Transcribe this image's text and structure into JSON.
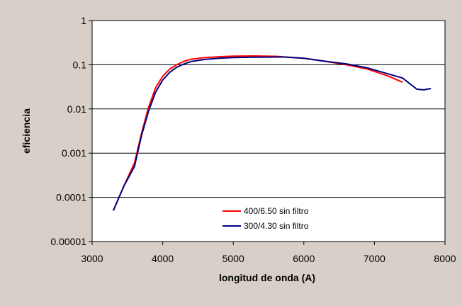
{
  "chart_data": {
    "type": "line",
    "xlabel": "longitud de onda (A)",
    "ylabel": "eficiencia",
    "title": "",
    "xlim": [
      3000,
      8000
    ],
    "ylim": [
      1e-05,
      1
    ],
    "yscale": "log",
    "grid": "horizontal major lines",
    "legend_position": "bottom-center",
    "x_ticks": [
      "3000",
      "4000",
      "5000",
      "6000",
      "7000",
      "8000"
    ],
    "y_ticks": [
      "0.00001",
      "0.0001",
      "0.001",
      "0.01",
      "0.1",
      "1"
    ],
    "series": [
      {
        "name": "400/6.50 sin filtro",
        "color": "#ff0000",
        "points": [
          [
            3300,
            5e-05
          ],
          [
            3450,
            0.00018
          ],
          [
            3600,
            0.0006
          ],
          [
            3700,
            0.0028
          ],
          [
            3800,
            0.011
          ],
          [
            3900,
            0.03
          ],
          [
            4000,
            0.055
          ],
          [
            4100,
            0.08
          ],
          [
            4200,
            0.1
          ],
          [
            4300,
            0.12
          ],
          [
            4400,
            0.133
          ],
          [
            4600,
            0.145
          ],
          [
            4800,
            0.152
          ],
          [
            5000,
            0.156
          ],
          [
            5300,
            0.158
          ],
          [
            5600,
            0.155
          ],
          [
            6000,
            0.14
          ],
          [
            6300,
            0.12
          ],
          [
            6600,
            0.1
          ],
          [
            6900,
            0.08
          ],
          [
            7200,
            0.055
          ],
          [
            7400,
            0.04
          ]
        ]
      },
      {
        "name": "300/4.30 sin filtro",
        "color": "#000080",
        "points": [
          [
            3300,
            5e-05
          ],
          [
            3450,
            0.00018
          ],
          [
            3600,
            0.0005
          ],
          [
            3700,
            0.0025
          ],
          [
            3800,
            0.009
          ],
          [
            3900,
            0.024
          ],
          [
            4000,
            0.045
          ],
          [
            4100,
            0.068
          ],
          [
            4200,
            0.088
          ],
          [
            4300,
            0.104
          ],
          [
            4400,
            0.118
          ],
          [
            4600,
            0.132
          ],
          [
            4800,
            0.14
          ],
          [
            5000,
            0.145
          ],
          [
            5300,
            0.148
          ],
          [
            5700,
            0.15
          ],
          [
            6000,
            0.14
          ],
          [
            6300,
            0.12
          ],
          [
            6600,
            0.105
          ],
          [
            6900,
            0.085
          ],
          [
            7200,
            0.062
          ],
          [
            7400,
            0.05
          ],
          [
            7600,
            0.028
          ],
          [
            7700,
            0.027
          ],
          [
            7800,
            0.029
          ]
        ]
      }
    ]
  }
}
